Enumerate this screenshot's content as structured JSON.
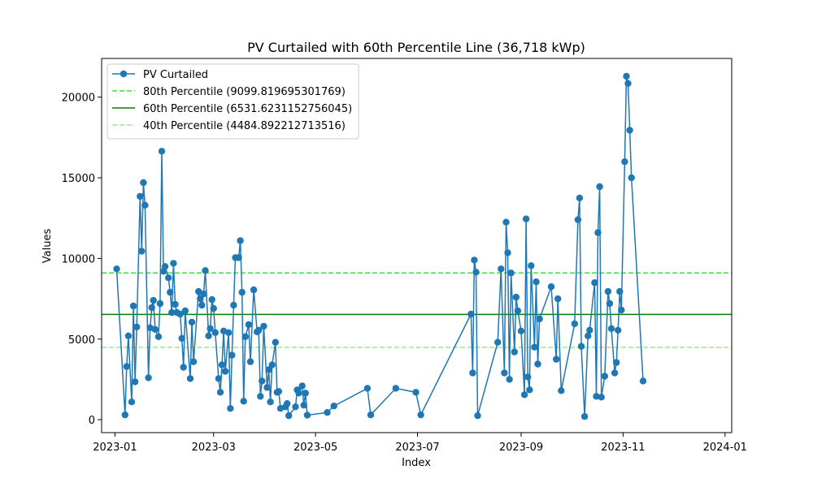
{
  "chart_data": {
    "type": "line",
    "title": "PV Curtailed with 60th Percentile Line (36,718 kWp)",
    "xlabel": "Index",
    "ylabel": "Values",
    "x_ticks": [
      "2023-01",
      "2023-03",
      "2023-05",
      "2023-07",
      "2023-09",
      "2023-11",
      "2024-01"
    ],
    "y_ticks": [
      "0",
      "5000",
      "10000",
      "15000",
      "20000"
    ],
    "xlim": [
      "2022-12-24",
      "2024-01-05"
    ],
    "ylim": [
      -800,
      22400
    ],
    "grid": false,
    "legend_position": "top-left",
    "series": [
      {
        "name": "PV Curtailed",
        "color": "#1f77b4",
        "marker": "circle",
        "points": [
          [
            "2023-01-02",
            9350
          ],
          [
            "2023-01-07",
            300
          ],
          [
            "2023-01-08",
            3300
          ],
          [
            "2023-01-09",
            5200
          ],
          [
            "2023-01-11",
            1100
          ],
          [
            "2023-01-12",
            7050
          ],
          [
            "2023-01-13",
            2350
          ],
          [
            "2023-01-14",
            5750
          ],
          [
            "2023-01-16",
            13850
          ],
          [
            "2023-01-17",
            10450
          ],
          [
            "2023-01-18",
            14700
          ],
          [
            "2023-01-19",
            13300
          ],
          [
            "2023-01-21",
            2600
          ],
          [
            "2023-01-22",
            5700
          ],
          [
            "2023-01-23",
            6950
          ],
          [
            "2023-01-24",
            7400
          ],
          [
            "2023-01-25",
            5600
          ],
          [
            "2023-01-27",
            5150
          ],
          [
            "2023-01-28",
            7200
          ],
          [
            "2023-01-29",
            16650
          ],
          [
            "2023-01-30",
            9200
          ],
          [
            "2023-01-31",
            9500
          ],
          [
            "2023-02-02",
            8800
          ],
          [
            "2023-02-03",
            7900
          ],
          [
            "2023-02-04",
            6650
          ],
          [
            "2023-02-05",
            9700
          ],
          [
            "2023-02-06",
            7150
          ],
          [
            "2023-02-07",
            6650
          ],
          [
            "2023-02-09",
            6550
          ],
          [
            "2023-02-10",
            5050
          ],
          [
            "2023-02-11",
            3250
          ],
          [
            "2023-02-12",
            6750
          ],
          [
            "2023-02-15",
            2550
          ],
          [
            "2023-02-16",
            6050
          ],
          [
            "2023-02-17",
            3600
          ],
          [
            "2023-02-20",
            7950
          ],
          [
            "2023-02-21",
            7500
          ],
          [
            "2023-02-22",
            7100
          ],
          [
            "2023-02-23",
            7800
          ],
          [
            "2023-02-24",
            9250
          ],
          [
            "2023-02-26",
            5200
          ],
          [
            "2023-02-27",
            5650
          ],
          [
            "2023-02-28",
            7450
          ],
          [
            "2023-03-01",
            6900
          ],
          [
            "2023-03-02",
            5400
          ],
          [
            "2023-03-04",
            2550
          ],
          [
            "2023-03-05",
            1700
          ],
          [
            "2023-03-06",
            3400
          ],
          [
            "2023-03-07",
            5500
          ],
          [
            "2023-03-08",
            3000
          ],
          [
            "2023-03-10",
            5400
          ],
          [
            "2023-03-11",
            700
          ],
          [
            "2023-03-12",
            4000
          ],
          [
            "2023-03-13",
            7100
          ],
          [
            "2023-03-14",
            10050
          ],
          [
            "2023-03-16",
            10050
          ],
          [
            "2023-03-17",
            11100
          ],
          [
            "2023-03-18",
            7900
          ],
          [
            "2023-03-19",
            1150
          ],
          [
            "2023-03-20",
            5150
          ],
          [
            "2023-03-22",
            5900
          ],
          [
            "2023-03-23",
            3600
          ],
          [
            "2023-03-25",
            8050
          ],
          [
            "2023-03-27",
            5450
          ],
          [
            "2023-03-28",
            5550
          ],
          [
            "2023-03-29",
            1450
          ],
          [
            "2023-03-30",
            2400
          ],
          [
            "2023-03-31",
            5800
          ],
          [
            "2023-04-02",
            2000
          ],
          [
            "2023-04-03",
            3100
          ],
          [
            "2023-04-04",
            1100
          ],
          [
            "2023-04-05",
            3400
          ],
          [
            "2023-04-07",
            4800
          ],
          [
            "2023-04-08",
            1700
          ],
          [
            "2023-04-09",
            1750
          ],
          [
            "2023-04-10",
            700
          ],
          [
            "2023-04-13",
            800
          ],
          [
            "2023-04-14",
            1000
          ],
          [
            "2023-04-15",
            250
          ],
          [
            "2023-04-19",
            800
          ],
          [
            "2023-04-20",
            1850
          ],
          [
            "2023-04-21",
            1650
          ],
          [
            "2023-04-23",
            2100
          ],
          [
            "2023-04-24",
            900
          ],
          [
            "2023-04-25",
            1650
          ],
          [
            "2023-04-26",
            280
          ],
          [
            "2023-05-08",
            450
          ],
          [
            "2023-05-12",
            850
          ],
          [
            "2023-06-01",
            1950
          ],
          [
            "2023-06-03",
            300
          ],
          [
            "2023-06-18",
            1950
          ],
          [
            "2023-06-30",
            1700
          ],
          [
            "2023-07-03",
            300
          ],
          [
            "2023-08-02",
            6550
          ],
          [
            "2023-08-03",
            2900
          ],
          [
            "2023-08-04",
            9900
          ],
          [
            "2023-08-05",
            9150
          ],
          [
            "2023-08-06",
            250
          ],
          [
            "2023-08-18",
            4800
          ],
          [
            "2023-08-20",
            9350
          ],
          [
            "2023-08-22",
            2900
          ],
          [
            "2023-08-23",
            12250
          ],
          [
            "2023-08-24",
            10350
          ],
          [
            "2023-08-25",
            2500
          ],
          [
            "2023-08-26",
            9100
          ],
          [
            "2023-08-28",
            4200
          ],
          [
            "2023-08-29",
            7600
          ],
          [
            "2023-08-30",
            6750
          ],
          [
            "2023-09-01",
            5500
          ],
          [
            "2023-09-03",
            1550
          ],
          [
            "2023-09-04",
            12450
          ],
          [
            "2023-09-05",
            2650
          ],
          [
            "2023-09-06",
            1850
          ],
          [
            "2023-09-07",
            9550
          ],
          [
            "2023-09-09",
            4500
          ],
          [
            "2023-09-10",
            8550
          ],
          [
            "2023-09-11",
            3450
          ],
          [
            "2023-09-12",
            6250
          ],
          [
            "2023-09-19",
            8250
          ],
          [
            "2023-09-22",
            3750
          ],
          [
            "2023-09-23",
            7500
          ],
          [
            "2023-09-25",
            1800
          ],
          [
            "2023-10-03",
            5950
          ],
          [
            "2023-10-05",
            12400
          ],
          [
            "2023-10-06",
            13750
          ],
          [
            "2023-10-07",
            4550
          ],
          [
            "2023-10-09",
            200
          ],
          [
            "2023-10-11",
            5200
          ],
          [
            "2023-10-12",
            5550
          ],
          [
            "2023-10-15",
            8500
          ],
          [
            "2023-10-16",
            1450
          ],
          [
            "2023-10-17",
            11600
          ],
          [
            "2023-10-18",
            14450
          ],
          [
            "2023-10-19",
            1400
          ],
          [
            "2023-10-21",
            2700
          ],
          [
            "2023-10-23",
            7950
          ],
          [
            "2023-10-24",
            7200
          ],
          [
            "2023-10-25",
            5650
          ],
          [
            "2023-10-27",
            2900
          ],
          [
            "2023-10-28",
            3550
          ],
          [
            "2023-10-29",
            5550
          ],
          [
            "2023-10-30",
            7950
          ],
          [
            "2023-10-31",
            6800
          ],
          [
            "2023-11-02",
            16000
          ],
          [
            "2023-11-03",
            21300
          ],
          [
            "2023-11-04",
            20850
          ],
          [
            "2023-11-05",
            17950
          ],
          [
            "2023-11-06",
            15000
          ],
          [
            "2023-11-13",
            2400
          ]
        ]
      }
    ],
    "reference_lines": [
      {
        "name": "80th Percentile (9099.819695301769)",
        "y": 9099.819695301769,
        "color": "#32e632",
        "style": "dashed"
      },
      {
        "name": "60th Percentile (6531.6231152756045)",
        "y": 6531.6231152756045,
        "color": "#008000",
        "style": "solid"
      },
      {
        "name": "40th Percentile (4484.892212713516)",
        "y": 4484.892212713516,
        "color": "#90ee90",
        "style": "dashed"
      }
    ]
  }
}
